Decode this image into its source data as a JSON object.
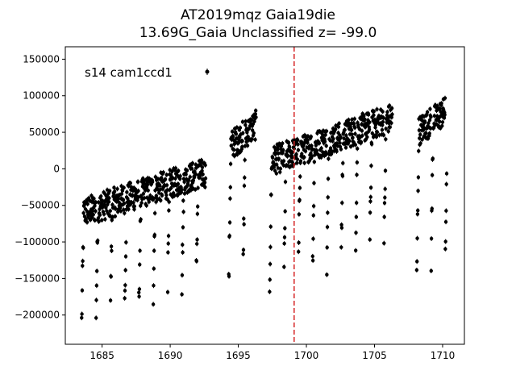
{
  "chart_data": {
    "type": "scatter",
    "title": "AT2019mqz  Gaia19die",
    "subtitle": "13.69G_Gaia Unclassified z= -99.0",
    "xlabel": "",
    "ylabel": "",
    "xlim": [
      1682.3,
      1711.6
    ],
    "ylim": [
      -240000,
      167000
    ],
    "xticks": [
      1685,
      1690,
      1695,
      1700,
      1705,
      1710
    ],
    "xtick_labels": [
      "1685",
      "1690",
      "1695",
      "1700",
      "1705",
      "1710"
    ],
    "yticks": [
      -200000,
      -150000,
      -100000,
      -50000,
      0,
      50000,
      100000,
      150000
    ],
    "ytick_labels": [
      "−200000",
      "−150000",
      "−100000",
      "−50000",
      "0",
      "50000",
      "100000",
      "150000"
    ],
    "grid": false,
    "legend": {
      "position": "top-left",
      "entries": [
        "s14 cam1ccd1"
      ]
    },
    "vline": {
      "x": 1699.1,
      "style": "dashed",
      "color": "#d62728"
    },
    "series": [
      {
        "name": "s14 cam1ccd1",
        "color": "#000000",
        "segments": [
          {
            "x0": 1683.5,
            "x1": 1692.6,
            "base": -60000,
            "trend": 55000,
            "amp": 150000,
            "period": 1.05
          },
          {
            "x0": 1694.3,
            "x1": 1696.3,
            "base": 30000,
            "trend": 30000,
            "amp": 190000,
            "period": 1.05
          },
          {
            "x0": 1697.3,
            "x1": 1706.3,
            "base": 10000,
            "trend": 60000,
            "amp": 170000,
            "period": 1.05
          },
          {
            "x0": 1708.1,
            "x1": 1710.3,
            "base": 50000,
            "trend": 30000,
            "amp": 200000,
            "period": 1.05
          }
        ]
      }
    ]
  }
}
